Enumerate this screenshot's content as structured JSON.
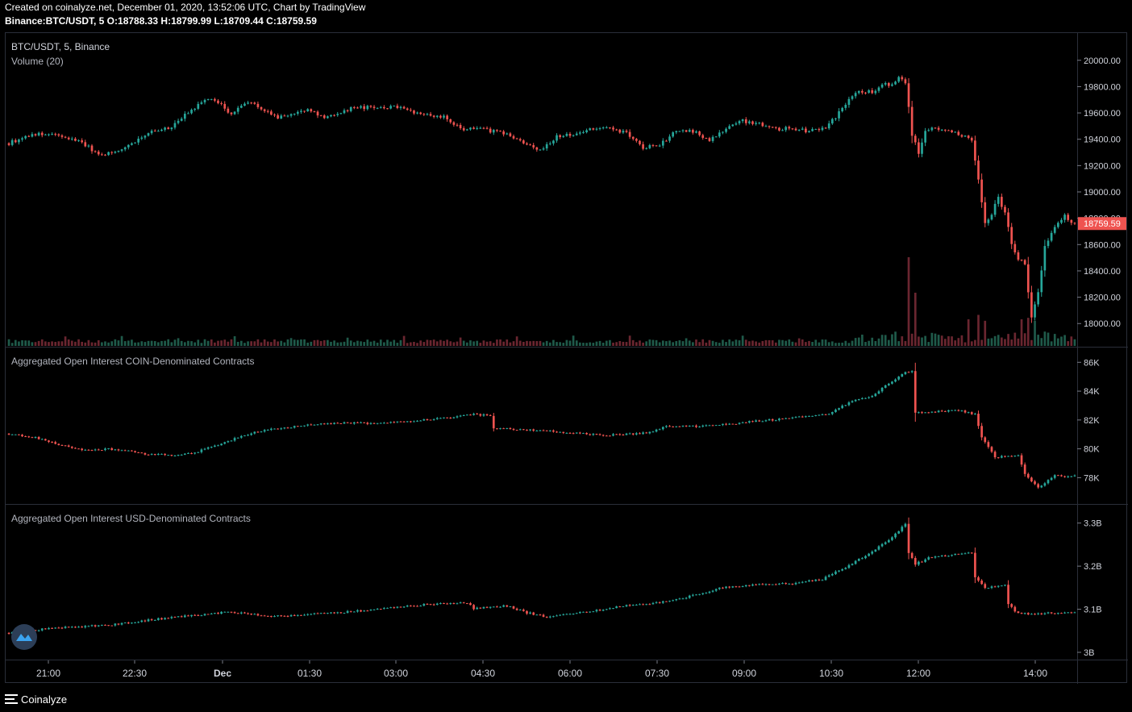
{
  "header": {
    "line1": "Created on coinalyze.net, December 01, 2020, 13:52:06 UTC, Chart by TradingView",
    "line2": "Binance:BTC/USDT, 5 O:18788.33 H:18799.99 L:18709.44 C:18759.59"
  },
  "footer": {
    "brand": "Coinalyze"
  },
  "colors": {
    "up": "#26a69a",
    "down": "#ef5350",
    "grid": "#2a2e39",
    "text": "#d1d4dc",
    "price_tag_bg": "#ef5350"
  },
  "chart_data": [
    {
      "type": "candlestick",
      "title": "BTC/USDT, 5, Binance",
      "subtitle": "Volume (20)",
      "y_ticks": [
        "20000.00",
        "19800.00",
        "19600.00",
        "19400.00",
        "19200.00",
        "19000.00",
        "18800.00",
        "18600.00",
        "18400.00",
        "18200.00",
        "18000.00"
      ],
      "ylim": [
        17830,
        20170
      ],
      "last_price": "18759.59",
      "close_anchors": [
        [
          0,
          19370
        ],
        [
          7,
          19440
        ],
        [
          14,
          19430
        ],
        [
          22,
          19380
        ],
        [
          27,
          19280
        ],
        [
          33,
          19310
        ],
        [
          42,
          19450
        ],
        [
          48,
          19480
        ],
        [
          56,
          19640
        ],
        [
          60,
          19710
        ],
        [
          63,
          19680
        ],
        [
          67,
          19590
        ],
        [
          72,
          19690
        ],
        [
          77,
          19620
        ],
        [
          81,
          19560
        ],
        [
          86,
          19600
        ],
        [
          91,
          19620
        ],
        [
          95,
          19560
        ],
        [
          99,
          19600
        ],
        [
          104,
          19640
        ],
        [
          108,
          19640
        ],
        [
          113,
          19640
        ],
        [
          118,
          19650
        ],
        [
          122,
          19610
        ],
        [
          127,
          19580
        ],
        [
          131,
          19570
        ],
        [
          136,
          19480
        ],
        [
          141,
          19480
        ],
        [
          146,
          19460
        ],
        [
          151,
          19430
        ],
        [
          156,
          19350
        ],
        [
          160,
          19320
        ],
        [
          165,
          19420
        ],
        [
          170,
          19440
        ],
        [
          176,
          19480
        ],
        [
          181,
          19480
        ],
        [
          186,
          19450
        ],
        [
          191,
          19330
        ],
        [
          196,
          19360
        ],
        [
          201,
          19460
        ],
        [
          206,
          19460
        ],
        [
          211,
          19400
        ],
        [
          216,
          19480
        ],
        [
          221,
          19540
        ],
        [
          226,
          19520
        ],
        [
          231,
          19480
        ],
        [
          236,
          19480
        ],
        [
          241,
          19460
        ],
        [
          246,
          19490
        ],
        [
          250,
          19600
        ],
        [
          255,
          19760
        ],
        [
          260,
          19760
        ],
        [
          263,
          19810
        ],
        [
          266,
          19820
        ],
        [
          268,
          19860
        ],
        [
          270,
          19830
        ],
        [
          272,
          19440
        ],
        [
          274,
          19290
        ],
        [
          276,
          19470
        ],
        [
          280,
          19480
        ],
        [
          284,
          19460
        ],
        [
          288,
          19420
        ],
        [
          290,
          19390
        ],
        [
          292,
          19100
        ],
        [
          294,
          18750
        ],
        [
          296,
          18840
        ],
        [
          298,
          18960
        ],
        [
          300,
          18840
        ],
        [
          302,
          18610
        ],
        [
          304,
          18490
        ],
        [
          306,
          18450
        ],
        [
          308,
          18040
        ],
        [
          310,
          18230
        ],
        [
          312,
          18580
        ],
        [
          314,
          18700
        ],
        [
          316,
          18760
        ],
        [
          318,
          18820
        ],
        [
          320,
          18760
        ]
      ],
      "volume_max": 600000,
      "volume_spikes": [
        [
          271,
          600000
        ],
        [
          273,
          360000
        ],
        [
          289,
          180000
        ],
        [
          292,
          210000
        ],
        [
          294,
          170000
        ],
        [
          305,
          180000
        ],
        [
          307,
          190000
        ],
        [
          309,
          170000
        ]
      ]
    },
    {
      "type": "candlestick",
      "title": "Aggregated Open Interest COIN-Denominated Contracts",
      "y_ticks": [
        "86K",
        "84K",
        "82K",
        "80K",
        "78K"
      ],
      "ylim": [
        76400,
        86800
      ],
      "close_anchors": [
        [
          0,
          81050
        ],
        [
          8,
          80800
        ],
        [
          15,
          80300
        ],
        [
          22,
          79950
        ],
        [
          30,
          79980
        ],
        [
          36,
          79850
        ],
        [
          40,
          79650
        ],
        [
          47,
          79600
        ],
        [
          52,
          79550
        ],
        [
          56,
          79750
        ],
        [
          62,
          80200
        ],
        [
          68,
          80700
        ],
        [
          74,
          81150
        ],
        [
          82,
          81450
        ],
        [
          92,
          81700
        ],
        [
          101,
          81800
        ],
        [
          110,
          81750
        ],
        [
          118,
          81850
        ],
        [
          126,
          82050
        ],
        [
          134,
          82200
        ],
        [
          140,
          82400
        ],
        [
          145,
          82300
        ],
        [
          146,
          81450
        ],
        [
          155,
          81300
        ],
        [
          163,
          81250
        ],
        [
          172,
          81050
        ],
        [
          181,
          80950
        ],
        [
          192,
          81100
        ],
        [
          198,
          81550
        ],
        [
          207,
          81550
        ],
        [
          218,
          81750
        ],
        [
          229,
          82000
        ],
        [
          239,
          82200
        ],
        [
          247,
          82400
        ],
        [
          253,
          83200
        ],
        [
          260,
          83700
        ],
        [
          266,
          84700
        ],
        [
          270,
          85300
        ],
        [
          272,
          85400
        ],
        [
          273,
          82500
        ],
        [
          280,
          82600
        ],
        [
          286,
          82650
        ],
        [
          291,
          82400
        ],
        [
          293,
          80800
        ],
        [
          297,
          79400
        ],
        [
          304,
          79600
        ],
        [
          306,
          78300
        ],
        [
          310,
          77300
        ],
        [
          315,
          78200
        ],
        [
          318,
          78100
        ]
      ]
    },
    {
      "type": "candlestick",
      "title": "Aggregated Open Interest USD-Denominated Contracts",
      "y_ticks": [
        "3.3B",
        "3.2B",
        "3.1B",
        "3B"
      ],
      "ylim": [
        2.985,
        3.335
      ],
      "close_anchors": [
        [
          0,
          3.045
        ],
        [
          12,
          3.055
        ],
        [
          22,
          3.06
        ],
        [
          32,
          3.065
        ],
        [
          42,
          3.075
        ],
        [
          55,
          3.085
        ],
        [
          65,
          3.093
        ],
        [
          72,
          3.09
        ],
        [
          79,
          3.083
        ],
        [
          90,
          3.088
        ],
        [
          100,
          3.093
        ],
        [
          112,
          3.1
        ],
        [
          124,
          3.11
        ],
        [
          138,
          3.115
        ],
        [
          140,
          3.102
        ],
        [
          150,
          3.108
        ],
        [
          156,
          3.092
        ],
        [
          162,
          3.083
        ],
        [
          175,
          3.095
        ],
        [
          186,
          3.108
        ],
        [
          198,
          3.118
        ],
        [
          205,
          3.13
        ],
        [
          215,
          3.15
        ],
        [
          225,
          3.157
        ],
        [
          236,
          3.16
        ],
        [
          245,
          3.17
        ],
        [
          252,
          3.198
        ],
        [
          258,
          3.225
        ],
        [
          266,
          3.265
        ],
        [
          270,
          3.3
        ],
        [
          271,
          3.23
        ],
        [
          273,
          3.205
        ],
        [
          278,
          3.222
        ],
        [
          290,
          3.23
        ],
        [
          291,
          3.175
        ],
        [
          294,
          3.15
        ],
        [
          300,
          3.155
        ],
        [
          301,
          3.11
        ],
        [
          304,
          3.09
        ],
        [
          310,
          3.09
        ],
        [
          318,
          3.093
        ]
      ]
    }
  ],
  "x_axis": {
    "ticks": [
      "21:00",
      "22:30",
      "Dec",
      "01:30",
      "03:00",
      "04:30",
      "06:00",
      "07:30",
      "09:00",
      "10:30",
      "12:00",
      "14:00"
    ],
    "count": 322
  }
}
